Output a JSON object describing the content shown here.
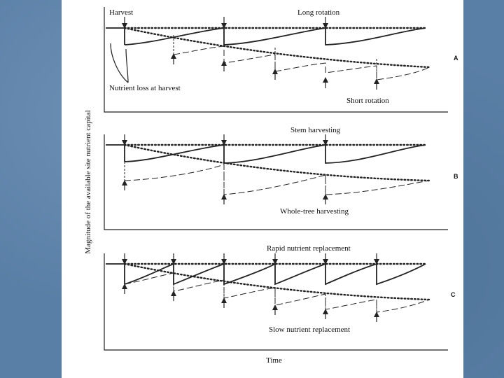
{
  "figure": {
    "y_axis_label": "Magnitude of the available site nutrient capital",
    "x_axis_label": "Time",
    "panels": [
      {
        "id": "A",
        "labels": {
          "harvest": "Harvest",
          "long_rotation": "Long rotation",
          "nutrient_loss": "Nutrient loss at harvest",
          "short_rotation": "Short rotation"
        }
      },
      {
        "id": "B",
        "labels": {
          "stem_harvesting": "Stem harvesting",
          "whole_tree_harvesting": "Whole-tree harvesting"
        }
      },
      {
        "id": "C",
        "labels": {
          "rapid_replacement": "Rapid nutrient replacement",
          "slow_replacement": "Slow nutrient replacement"
        }
      }
    ]
  }
}
